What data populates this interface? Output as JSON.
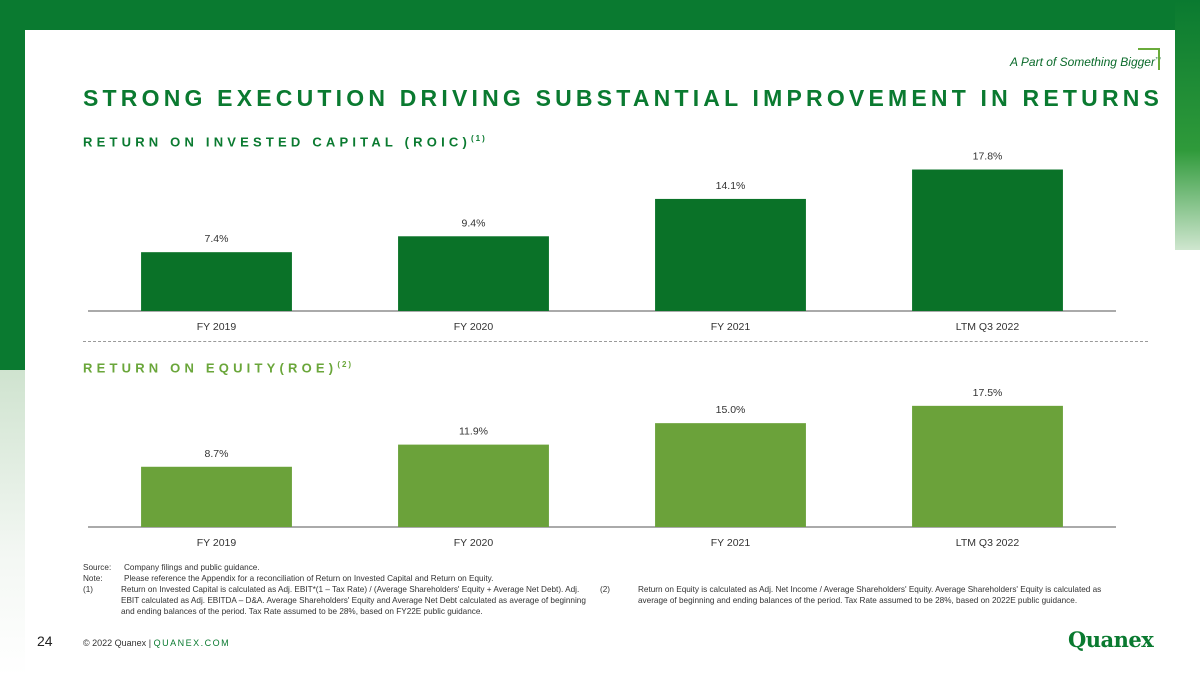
{
  "header": {
    "tagline": "A Part of Something Bigger",
    "tagline_mark": "™",
    "title": "STRONG EXECUTION DRIVING SUBSTANTIAL IMPROVEMENT IN RETURNS"
  },
  "colors": {
    "primary_green": "#0a7a30",
    "roe_green": "#6aa63a",
    "roic_bar": "#0a7228",
    "roe_bar": "#6ba23a"
  },
  "chart_data": [
    {
      "type": "bar",
      "title": "RETURN ON INVESTED CAPITAL (ROIC)",
      "title_note": "(1)",
      "categories": [
        "FY 2019",
        "FY 2020",
        "FY 2021",
        "LTM Q3 2022"
      ],
      "values": [
        7.4,
        9.4,
        14.1,
        17.8
      ],
      "value_labels": [
        "7.4%",
        "9.4%",
        "14.1%",
        "17.8%"
      ],
      "unit": "%",
      "ylim": [
        0,
        19.5
      ],
      "grid": false,
      "color": "#0a7228"
    },
    {
      "type": "bar",
      "title": "RETURN ON EQUITY(ROE)",
      "title_note": "(2)",
      "categories": [
        "FY 2019",
        "FY 2020",
        "FY 2021",
        "LTM Q3 2022"
      ],
      "values": [
        8.7,
        11.9,
        15.0,
        17.5
      ],
      "value_labels": [
        "8.7%",
        "11.9%",
        "15.0%",
        "17.5%"
      ],
      "unit": "%",
      "ylim": [
        0,
        19.5
      ],
      "grid": false,
      "color": "#6ba23a"
    }
  ],
  "notes": {
    "source_label": "Source:",
    "source_text": "Company filings and public guidance.",
    "note_label": "Note:",
    "note_text": "Please reference the Appendix for a reconciliation of Return on Invested Capital and Return on Equity.",
    "fn1_label": "(1)",
    "fn1_text": "Return on Invested Capital is calculated as Adj. EBIT*(1 – Tax Rate) / (Average Shareholders' Equity + Average Net Debt). Adj. EBIT calculated as Adj. EBITDA – D&A. Average Shareholders' Equity and Average Net Debt calculated as average of beginning and ending balances of the period. Tax Rate assumed to be 28%, based on FY22E public guidance.",
    "fn2_label": "(2)",
    "fn2_text": "Return on Equity is calculated as Adj. Net Income / Average Shareholders' Equity. Average Shareholders' Equity is calculated as average of beginning and ending balances of the period. Tax Rate assumed to be 28%, based on 2022E public guidance."
  },
  "footer": {
    "page_number": "24",
    "copyright": "© 2022 Quanex",
    "separator": "|",
    "website": "QUANEX.COM",
    "logo_text": "Quanex"
  }
}
